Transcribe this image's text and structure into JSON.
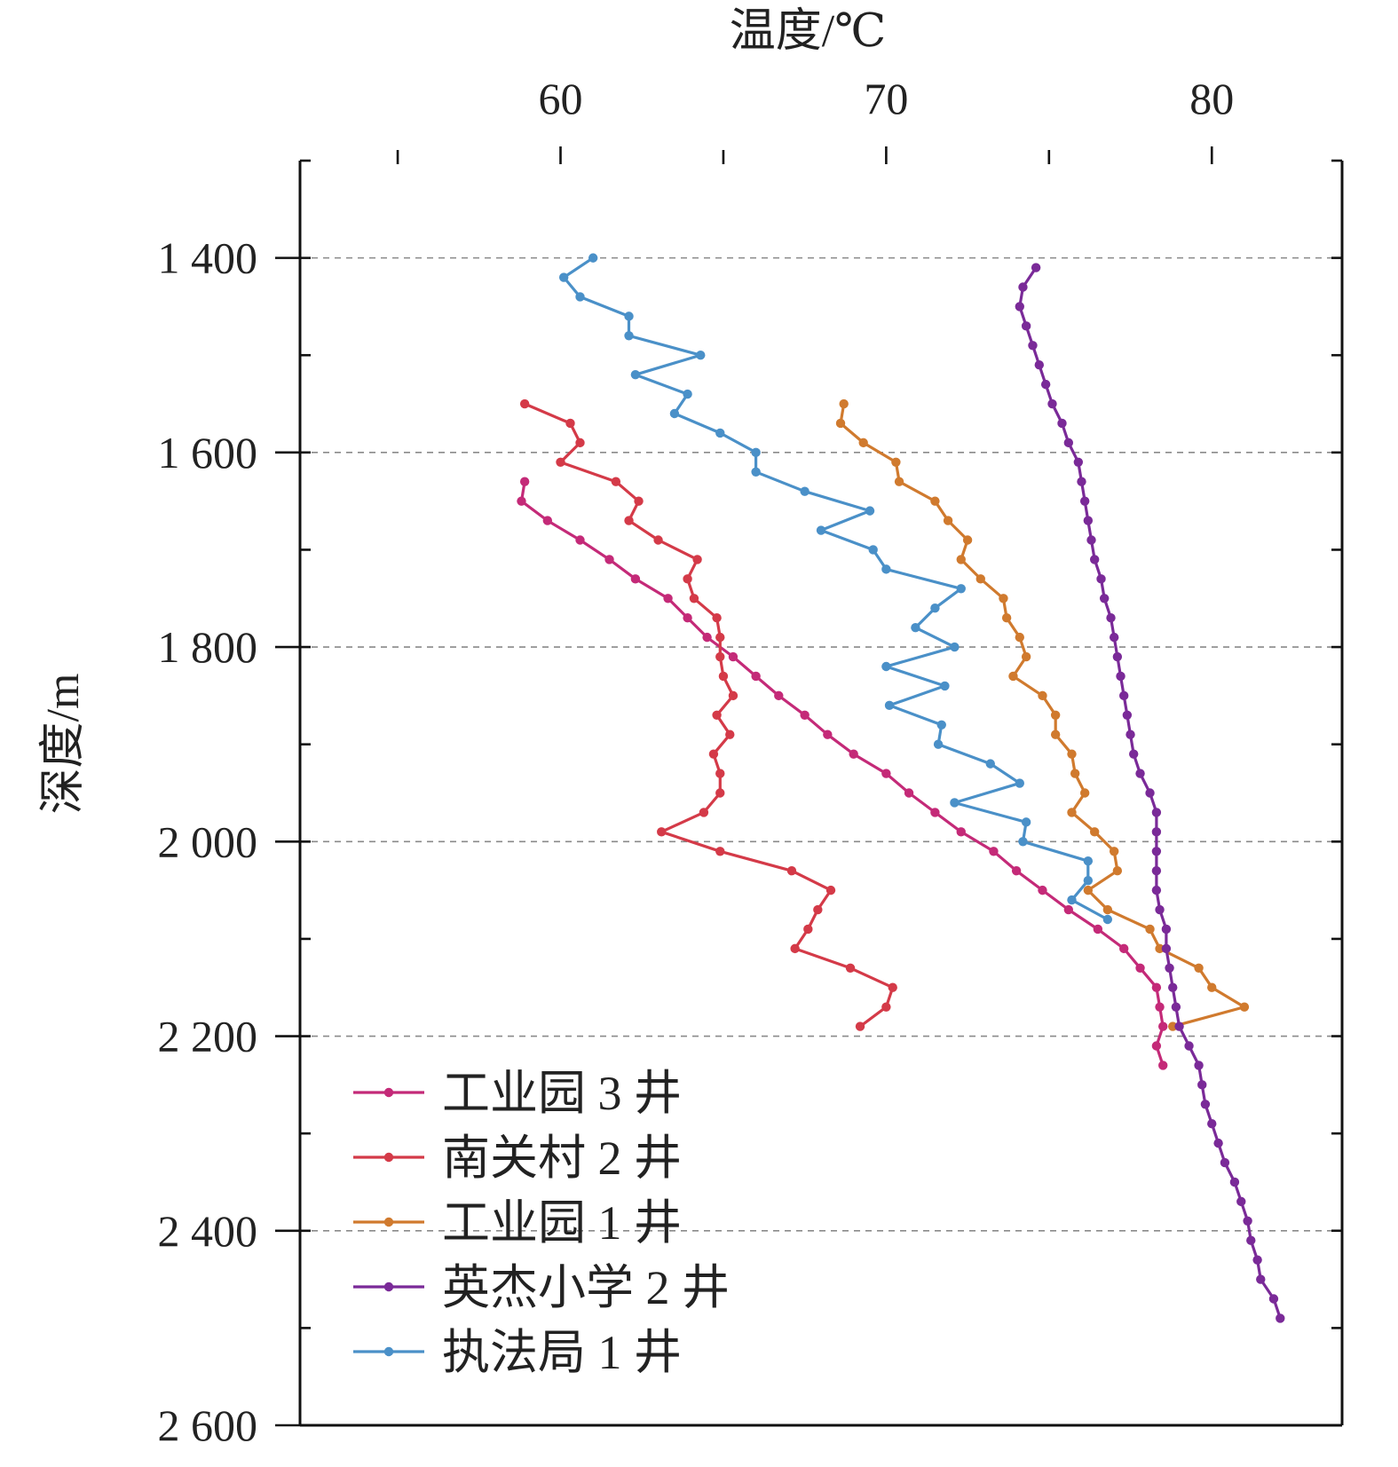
{
  "chart_data": {
    "type": "line",
    "xlabel": "温度/℃",
    "ylabel": "深度/m",
    "xlim": [
      52,
      84
    ],
    "ylim": [
      1300,
      2600
    ],
    "y_inverted": true,
    "x_axis_position": "top",
    "x_ticks": [
      60,
      70,
      80
    ],
    "x_tick_labels": [
      "60",
      "70",
      "80"
    ],
    "y_ticks": [
      1400,
      1600,
      1800,
      2000,
      2200,
      2400,
      2600
    ],
    "y_tick_labels": [
      "1 400",
      "1 600",
      "1 800",
      "2 000",
      "2 200",
      "2 400",
      "2 600"
    ],
    "grid": "horizontal dashed at labeled depths",
    "legend_position": "bottom-left",
    "series": [
      {
        "name": "工业园 3 井",
        "color": "#c42a78",
        "points": [
          [
            58.9,
            1630
          ],
          [
            58.8,
            1650
          ],
          [
            59.6,
            1670
          ],
          [
            60.6,
            1690
          ],
          [
            61.5,
            1710
          ],
          [
            62.3,
            1730
          ],
          [
            63.3,
            1750
          ],
          [
            63.9,
            1770
          ],
          [
            64.5,
            1790
          ],
          [
            65.3,
            1810
          ],
          [
            66,
            1830
          ],
          [
            66.7,
            1850
          ],
          [
            67.5,
            1870
          ],
          [
            68.2,
            1890
          ],
          [
            69,
            1910
          ],
          [
            70,
            1930
          ],
          [
            70.7,
            1950
          ],
          [
            71.5,
            1970
          ],
          [
            72.3,
            1990
          ],
          [
            73.3,
            2010
          ],
          [
            74,
            2030
          ],
          [
            74.8,
            2050
          ],
          [
            75.6,
            2070
          ],
          [
            76.5,
            2090
          ],
          [
            77.3,
            2110
          ],
          [
            77.8,
            2130
          ],
          [
            78.3,
            2150
          ],
          [
            78.4,
            2170
          ],
          [
            78.5,
            2190
          ],
          [
            78.3,
            2210
          ],
          [
            78.5,
            2230
          ]
        ]
      },
      {
        "name": "南关村 2 井",
        "color": "#d43a48",
        "points": [
          [
            58.9,
            1550
          ],
          [
            60.3,
            1570
          ],
          [
            60.6,
            1590
          ],
          [
            60,
            1610
          ],
          [
            61.7,
            1630
          ],
          [
            62.4,
            1650
          ],
          [
            62.1,
            1670
          ],
          [
            63,
            1690
          ],
          [
            64.2,
            1710
          ],
          [
            63.9,
            1730
          ],
          [
            64.1,
            1750
          ],
          [
            64.8,
            1770
          ],
          [
            64.9,
            1790
          ],
          [
            64.9,
            1810
          ],
          [
            65,
            1830
          ],
          [
            65.3,
            1850
          ],
          [
            64.8,
            1870
          ],
          [
            65.2,
            1890
          ],
          [
            64.7,
            1910
          ],
          [
            64.9,
            1930
          ],
          [
            64.9,
            1950
          ],
          [
            64.4,
            1970
          ],
          [
            63.1,
            1990
          ],
          [
            64.9,
            2010
          ],
          [
            67.1,
            2030
          ],
          [
            68.3,
            2050
          ],
          [
            67.9,
            2070
          ],
          [
            67.6,
            2090
          ],
          [
            67.2,
            2110
          ],
          [
            68.9,
            2130
          ],
          [
            70.2,
            2150
          ],
          [
            70,
            2170
          ],
          [
            69.2,
            2190
          ]
        ]
      },
      {
        "name": "工业园 1 井",
        "color": "#d07a2e",
        "points": [
          [
            68.7,
            1550
          ],
          [
            68.6,
            1570
          ],
          [
            69.3,
            1590
          ],
          [
            70.3,
            1610
          ],
          [
            70.4,
            1630
          ],
          [
            71.5,
            1650
          ],
          [
            71.9,
            1670
          ],
          [
            72.5,
            1690
          ],
          [
            72.3,
            1710
          ],
          [
            72.9,
            1730
          ],
          [
            73.6,
            1750
          ],
          [
            73.7,
            1770
          ],
          [
            74.1,
            1790
          ],
          [
            74.3,
            1810
          ],
          [
            73.9,
            1830
          ],
          [
            74.8,
            1850
          ],
          [
            75.2,
            1870
          ],
          [
            75.2,
            1890
          ],
          [
            75.7,
            1910
          ],
          [
            75.8,
            1930
          ],
          [
            76.1,
            1950
          ],
          [
            75.7,
            1970
          ],
          [
            76.4,
            1990
          ],
          [
            77,
            2010
          ],
          [
            77.1,
            2030
          ],
          [
            76.2,
            2050
          ],
          [
            76.8,
            2070
          ],
          [
            78.1,
            2090
          ],
          [
            78.4,
            2110
          ],
          [
            79.6,
            2130
          ],
          [
            80,
            2150
          ],
          [
            81,
            2170
          ],
          [
            78.8,
            2190
          ]
        ]
      },
      {
        "name": "英杰小学 2 井",
        "color": "#7a2a98",
        "points": [
          [
            74.6,
            1410
          ],
          [
            74.2,
            1430
          ],
          [
            74.1,
            1450
          ],
          [
            74.3,
            1470
          ],
          [
            74.5,
            1490
          ],
          [
            74.7,
            1510
          ],
          [
            74.9,
            1530
          ],
          [
            75.1,
            1550
          ],
          [
            75.4,
            1570
          ],
          [
            75.6,
            1590
          ],
          [
            75.9,
            1610
          ],
          [
            76,
            1630
          ],
          [
            76.1,
            1650
          ],
          [
            76.2,
            1670
          ],
          [
            76.3,
            1690
          ],
          [
            76.4,
            1710
          ],
          [
            76.6,
            1730
          ],
          [
            76.7,
            1750
          ],
          [
            76.9,
            1770
          ],
          [
            77,
            1790
          ],
          [
            77.1,
            1810
          ],
          [
            77.2,
            1830
          ],
          [
            77.3,
            1850
          ],
          [
            77.4,
            1870
          ],
          [
            77.5,
            1890
          ],
          [
            77.6,
            1910
          ],
          [
            77.8,
            1930
          ],
          [
            78.1,
            1950
          ],
          [
            78.3,
            1970
          ],
          [
            78.3,
            1990
          ],
          [
            78.3,
            2010
          ],
          [
            78.3,
            2030
          ],
          [
            78.3,
            2050
          ],
          [
            78.4,
            2070
          ],
          [
            78.6,
            2090
          ],
          [
            78.6,
            2110
          ],
          [
            78.7,
            2130
          ],
          [
            78.8,
            2150
          ],
          [
            78.9,
            2170
          ],
          [
            79,
            2190
          ],
          [
            79.3,
            2210
          ],
          [
            79.6,
            2230
          ],
          [
            79.7,
            2250
          ],
          [
            79.8,
            2270
          ],
          [
            80,
            2290
          ],
          [
            80.2,
            2310
          ],
          [
            80.4,
            2330
          ],
          [
            80.7,
            2350
          ],
          [
            80.9,
            2370
          ],
          [
            81.1,
            2390
          ],
          [
            81.2,
            2410
          ],
          [
            81.4,
            2430
          ],
          [
            81.5,
            2450
          ],
          [
            81.9,
            2470
          ],
          [
            82.1,
            2490
          ]
        ]
      },
      {
        "name": "执法局 1 井",
        "color": "#4a90c8",
        "points": [
          [
            61,
            1400
          ],
          [
            60.1,
            1420
          ],
          [
            60.6,
            1440
          ],
          [
            62.1,
            1460
          ],
          [
            62.1,
            1480
          ],
          [
            64.3,
            1500
          ],
          [
            62.3,
            1520
          ],
          [
            63.9,
            1540
          ],
          [
            63.5,
            1560
          ],
          [
            64.9,
            1580
          ],
          [
            66,
            1600
          ],
          [
            66,
            1620
          ],
          [
            67.5,
            1640
          ],
          [
            69.5,
            1660
          ],
          [
            68,
            1680
          ],
          [
            69.6,
            1700
          ],
          [
            70,
            1720
          ],
          [
            72.3,
            1740
          ],
          [
            71.5,
            1760
          ],
          [
            70.9,
            1780
          ],
          [
            72.1,
            1800
          ],
          [
            70,
            1820
          ],
          [
            71.8,
            1840
          ],
          [
            70.1,
            1860
          ],
          [
            71.7,
            1880
          ],
          [
            71.6,
            1900
          ],
          [
            73.2,
            1920
          ],
          [
            74.1,
            1940
          ],
          [
            72.1,
            1960
          ],
          [
            74.3,
            1980
          ],
          [
            74.2,
            2000
          ],
          [
            76.2,
            2020
          ],
          [
            76.2,
            2040
          ],
          [
            75.7,
            2060
          ],
          [
            76.8,
            2080
          ]
        ]
      }
    ]
  }
}
